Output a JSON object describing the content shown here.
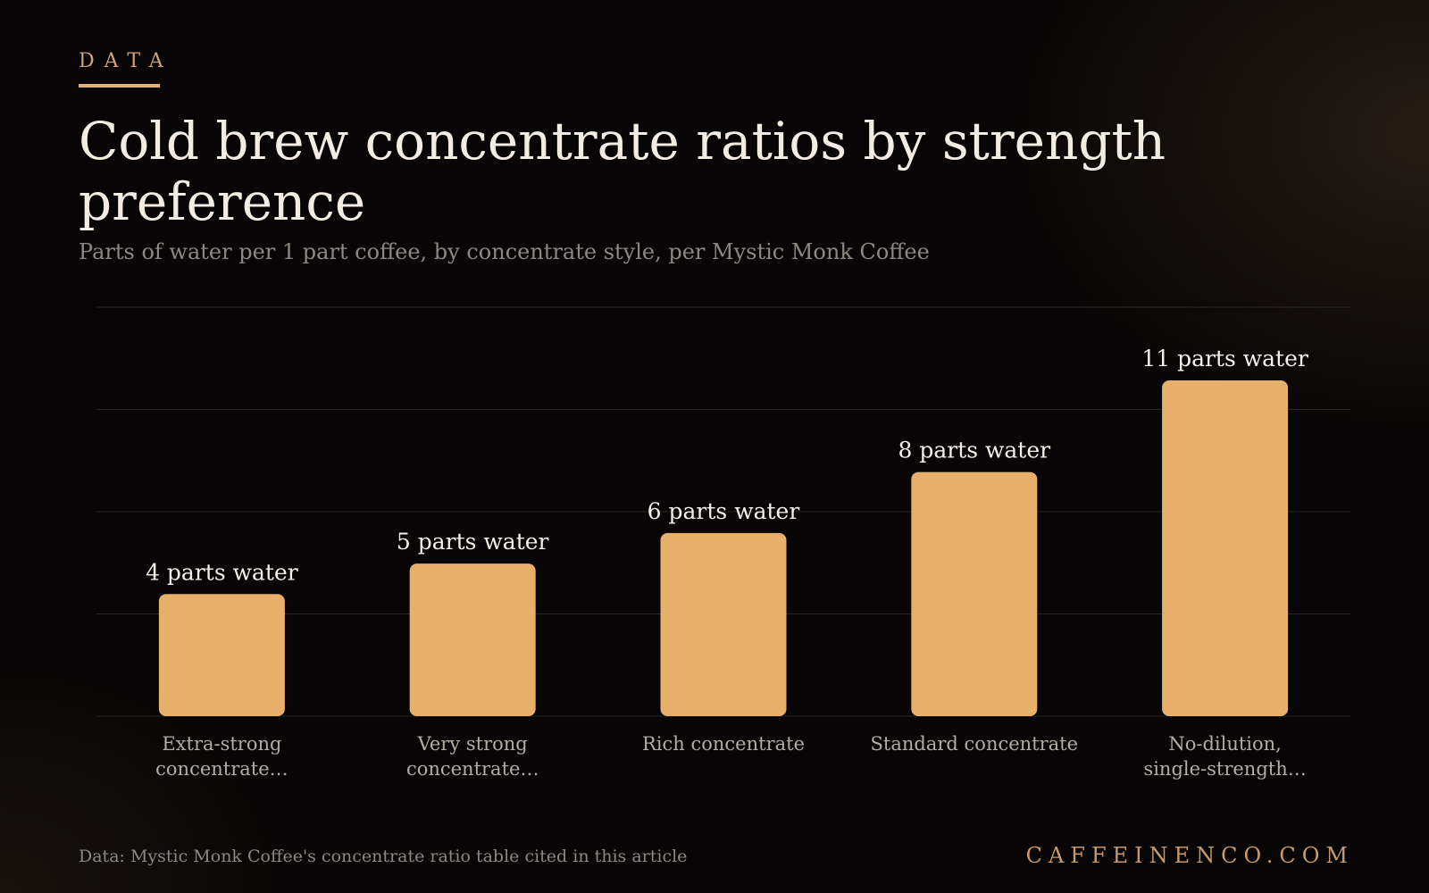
{
  "eyebrow": "DATA",
  "title": "Cold brew concentrate ratios by strength preference",
  "subtitle": "Parts of water per 1 part coffee, by concentrate style, per Mystic Monk Coffee",
  "footer": {
    "source": "Data: Mystic Monk Coffee's concentrate ratio table cited in this article",
    "brand": "CAFFEINENCO.COM"
  },
  "colors": {
    "bar": "#e8b06b",
    "grid": "#2a2622",
    "label": "#f5f0e8",
    "category": "#b3ada6"
  },
  "chart_data": {
    "type": "bar",
    "categories": [
      [
        "Extra-strong",
        "concentrate…"
      ],
      [
        "Very strong",
        "concentrate…"
      ],
      [
        "Rich concentrate"
      ],
      [
        "Standard concentrate"
      ],
      [
        "No-dilution,",
        "single-strength…"
      ]
    ],
    "values": [
      4,
      5,
      6,
      8,
      11
    ],
    "data_labels": [
      "4 parts water",
      "5 parts water",
      "6 parts water",
      "8 parts water",
      "11 parts water"
    ],
    "ylim": [
      0,
      13.4
    ],
    "grid": true,
    "y_axis_labels": false
  }
}
